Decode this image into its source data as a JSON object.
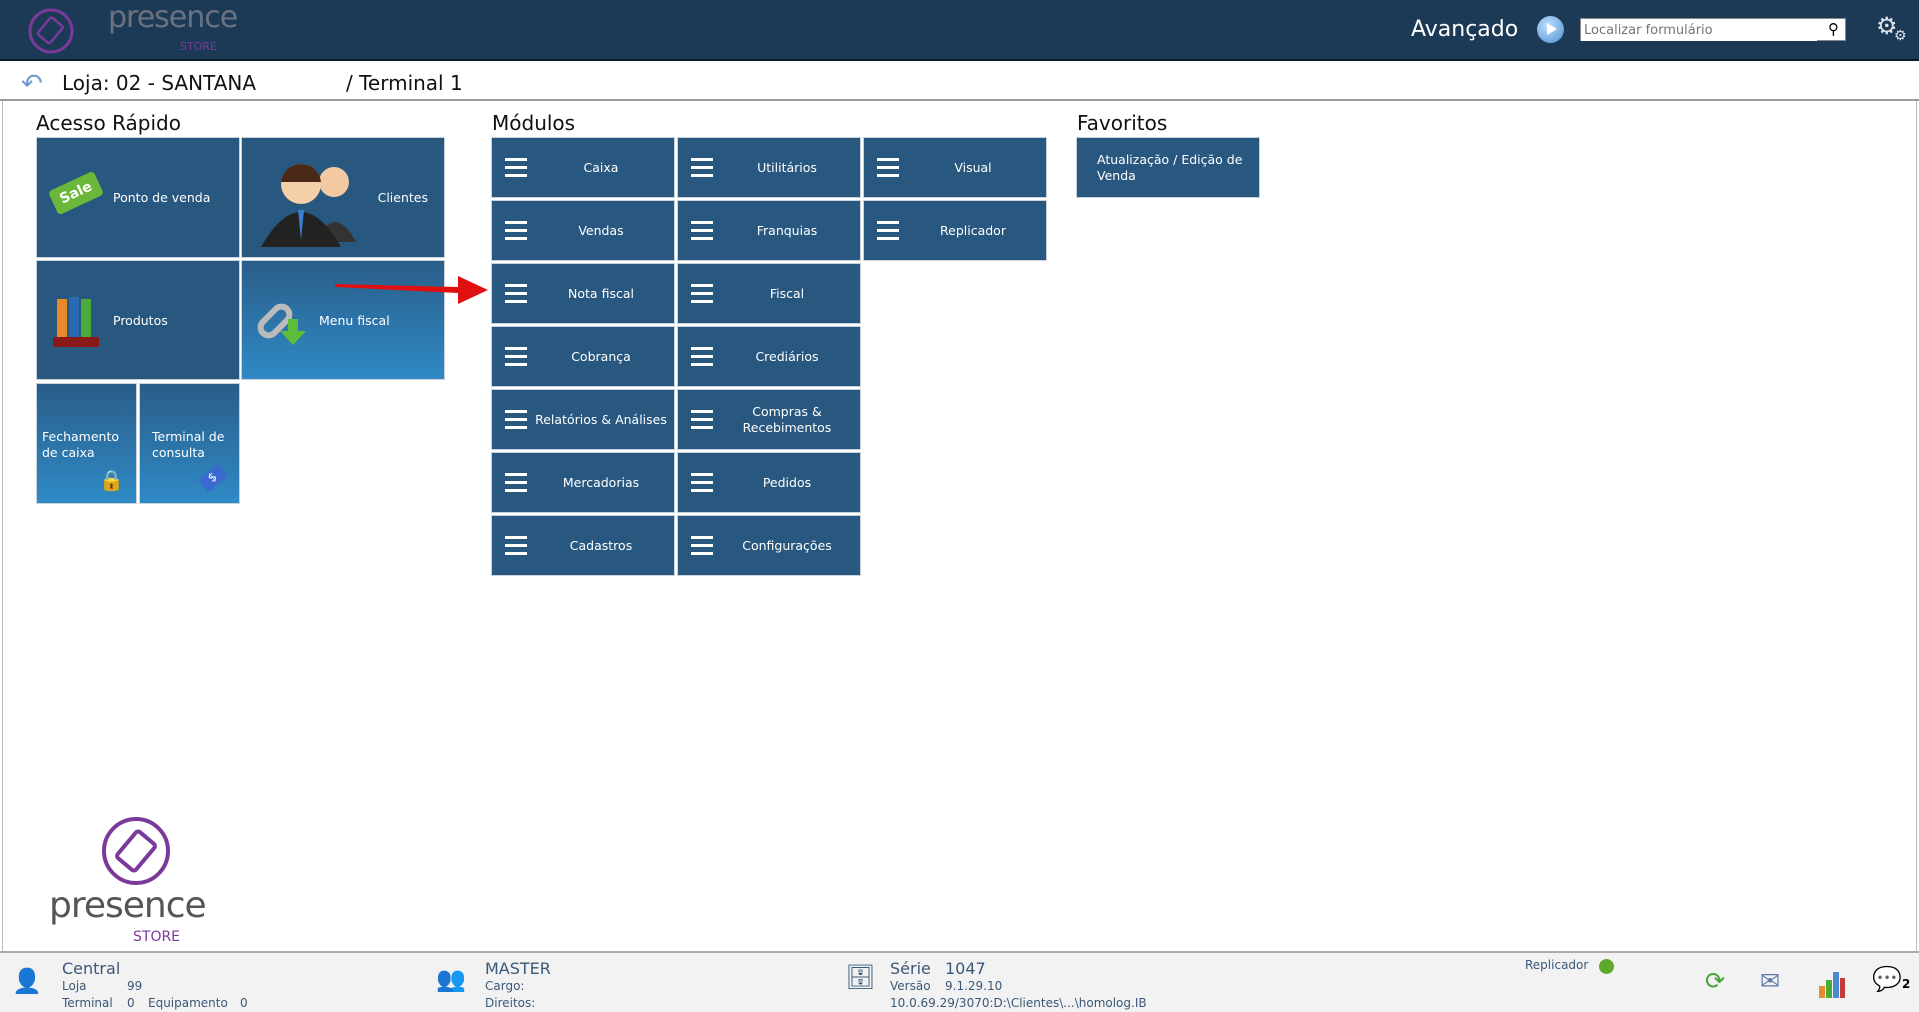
{
  "header": {
    "brand": "presence",
    "brand_sub": "STORE",
    "advanced_label": "Avançado",
    "search_placeholder": "Localizar formulário"
  },
  "breadcrumb": {
    "store": "Loja: 02 - SANTANA",
    "terminal": "/ Terminal 1"
  },
  "quick_access": {
    "title": "Acesso Rápido",
    "items": [
      {
        "label": "Ponto de venda",
        "icon": "sale-tag-icon"
      },
      {
        "label": "Clientes",
        "icon": "users-icon"
      },
      {
        "label": "Produtos",
        "icon": "crayons-icon"
      },
      {
        "label": "Menu fiscal",
        "icon": "chain-download-icon"
      },
      {
        "label": "Fechamento de caixa",
        "icon": "lock-key-icon"
      },
      {
        "label": "Terminal de consulta",
        "icon": "price-tag-icon"
      }
    ]
  },
  "modules": {
    "title": "Módulos",
    "items": [
      "Caixa",
      "Utilitários",
      "Visual",
      "Vendas",
      "Franquias",
      "Replicador",
      "Nota fiscal",
      "Fiscal",
      "Cobrança",
      "Crediários",
      "Relatórios & Análises",
      "Compras & Recebimentos",
      "Mercadorias",
      "Pedidos",
      "Cadastros",
      "Configurações"
    ]
  },
  "favorites": {
    "title": "Favoritos",
    "items": [
      "Atualização / Edição de Venda"
    ]
  },
  "footer": {
    "user": {
      "name": "Central",
      "loja_label": "Loja",
      "loja_value": "99",
      "terminal_label": "Terminal",
      "terminal_value": "0",
      "equip_label": "Equipamento",
      "equip_value": "0"
    },
    "role": {
      "name": "MASTER",
      "cargo_label": "Cargo:",
      "direitos_label": "Direitos:"
    },
    "db": {
      "serie_label": "Série",
      "serie_value": "1047",
      "versao_label": "Versão",
      "versao_value": "9.1.29.10",
      "path": "10.0.69.29/3070:D:\\Clientes\\...\\homolog.IB"
    },
    "replicator_label": "Replicador",
    "replicator_status_color": "#5fa82a",
    "messages_count": "2"
  },
  "colors": {
    "header": "#1c3a56",
    "tile": "#28577f",
    "arrow": "#e01010"
  }
}
